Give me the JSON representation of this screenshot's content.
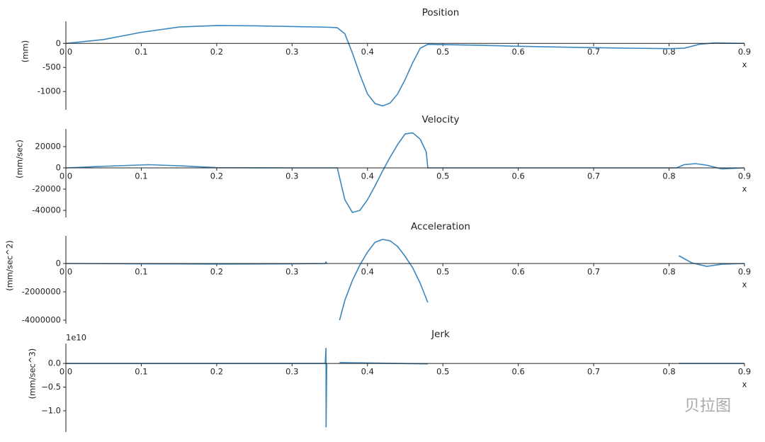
{
  "chart_data": [
    {
      "type": "line",
      "title": "Position",
      "ylabel": "(mm)",
      "xlabel": "x",
      "color": "#3a87bf",
      "x": [
        0,
        0.05,
        0.1,
        0.15,
        0.2,
        0.25,
        0.3,
        0.35,
        0.36,
        0.37,
        0.38,
        0.39,
        0.4,
        0.41,
        0.42,
        0.43,
        0.44,
        0.45,
        0.46,
        0.47,
        0.48,
        0.55,
        0.6,
        0.7,
        0.8,
        0.82,
        0.84,
        0.86,
        0.88,
        0.9
      ],
      "values": [
        0,
        80,
        230,
        340,
        370,
        365,
        350,
        335,
        325,
        200,
        -200,
        -650,
        -1050,
        -1250,
        -1300,
        -1240,
        -1050,
        -750,
        -400,
        -100,
        -20,
        -40,
        -60,
        -90,
        -110,
        -100,
        -20,
        10,
        5,
        0
      ],
      "xlim": [
        0,
        0.9
      ],
      "xticks": [
        {
          "value": 0,
          "label": "0.0"
        },
        0.1,
        0.2,
        0.3,
        0.4,
        0.5,
        0.6,
        0.7,
        0.8,
        0.9
      ],
      "ylim": [
        -1380,
        460
      ],
      "yticks": [
        -1000,
        -500,
        0
      ]
    },
    {
      "type": "line",
      "title": "Velocity",
      "ylabel": "(mm/sec)",
      "xlabel": "x",
      "color": "#3a87bf",
      "x": [
        0,
        0.05,
        0.11,
        0.15,
        0.2,
        0.3,
        0.36,
        0.365,
        0.37,
        0.38,
        0.39,
        0.4,
        0.41,
        0.42,
        0.43,
        0.44,
        0.45,
        0.46,
        0.47,
        0.478,
        0.48,
        0.6,
        0.81,
        0.82,
        0.835,
        0.85,
        0.87,
        0.9
      ],
      "values": [
        0,
        1500,
        3000,
        2000,
        200,
        0,
        0,
        -15000,
        -30000,
        -42000,
        -40000,
        -30000,
        -17000,
        -3000,
        10000,
        22000,
        32000,
        33000,
        27000,
        15000,
        0,
        0,
        0,
        3000,
        4000,
        2500,
        -1000,
        0
      ],
      "xlim": [
        0,
        0.9
      ],
      "xticks": [
        {
          "value": 0,
          "label": "0.0"
        },
        0.1,
        0.2,
        0.3,
        0.4,
        0.5,
        0.6,
        0.7,
        0.8,
        0.9
      ],
      "ylim": [
        -46700,
        36700
      ],
      "yticks": [
        -40000,
        -20000,
        0,
        20000
      ]
    },
    {
      "type": "line",
      "title": "Acceleration",
      "ylabel": "(mm/sec^2)",
      "xlabel": "x",
      "color": "#3a87bf",
      "x": [
        0,
        0.1,
        0.2,
        0.3,
        0.344,
        0.345,
        0.346,
        0.355,
        0.363,
        0.37,
        0.38,
        0.39,
        0.4,
        0.41,
        0.42,
        0.43,
        0.44,
        0.45,
        0.46,
        0.47,
        0.48,
        0.65,
        0.813,
        0.83,
        0.85,
        0.87,
        0.9
      ],
      "values": [
        0,
        -20000,
        -40000,
        -20000,
        0,
        100000,
        0,
        null,
        -4000000,
        -2600000,
        -1200000,
        -100000,
        800000,
        1500000,
        1700000,
        1600000,
        1200000,
        500000,
        -300000,
        -1400000,
        -2750000,
        null,
        550000,
        50000,
        -200000,
        -50000,
        0
      ],
      "xlim": [
        0,
        0.9
      ],
      "xticks": [
        {
          "value": 0,
          "label": "0.0"
        },
        0.1,
        0.2,
        0.3,
        0.4,
        0.5,
        0.6,
        0.7,
        0.8,
        0.9
      ],
      "ylim": [
        -4250000,
        1950000
      ],
      "yticks": [
        -4000000,
        -2000000,
        0
      ]
    },
    {
      "type": "line",
      "title": "Jerk",
      "ylabel": "(mm/sec^3)",
      "xlabel": "x",
      "color": "#3a87bf",
      "offset_text": "1e10",
      "x": [
        0,
        0.2,
        0.344,
        0.345,
        0.3451,
        0.346,
        0.355,
        0.363,
        0.4,
        0.44,
        0.48,
        0.65,
        0.813,
        0.9
      ],
      "values": [
        0,
        0,
        0,
        3300000000,
        -13500000000,
        0,
        null,
        200000000,
        100000000,
        0,
        -100000000,
        null,
        0,
        0
      ],
      "xlim": [
        0,
        0.9
      ],
      "xticks": [
        {
          "value": 0,
          "label": "0.0"
        },
        0.1,
        0.2,
        0.3,
        0.4,
        0.5,
        0.6,
        0.7,
        0.8,
        0.9
      ],
      "ylim": [
        -14500000000,
        4200000000
      ],
      "yticks": [
        {
          "value": -10000000000,
          "label": "−1.0"
        },
        {
          "value": -5000000000,
          "label": "−0.5"
        },
        {
          "value": 0,
          "label": "0.0"
        }
      ]
    }
  ],
  "watermark": "贝拉图"
}
